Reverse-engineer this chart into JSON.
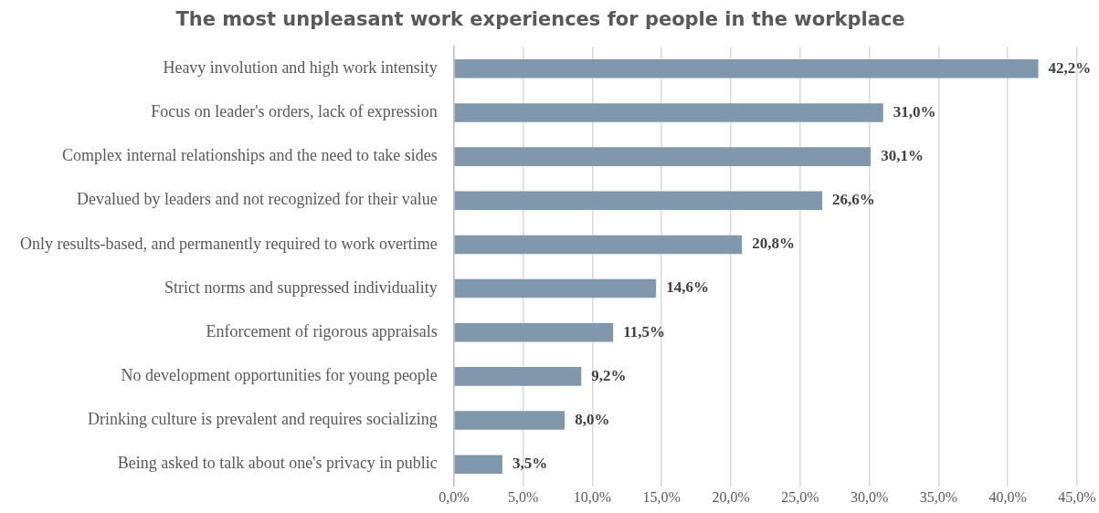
{
  "chart_data": {
    "type": "bar",
    "orientation": "horizontal",
    "title": "The most unpleasant work experiences for people in the workplace",
    "categories": [
      "Heavy involution and high work intensity",
      "Focus on leader's orders, lack of expression",
      "Complex internal relationships and the need to take sides",
      "Devalued by leaders and not recognized for their value",
      "Only results-based, and permanently required to work overtime",
      "Strict norms and suppressed individuality",
      "Enforcement of rigorous appraisals",
      "No development opportunities for young people",
      "Drinking culture is prevalent and requires socializing",
      "Being asked to talk about one's privacy in public"
    ],
    "values": [
      42.2,
      31.0,
      30.1,
      26.6,
      20.8,
      14.6,
      11.5,
      9.2,
      8.0,
      3.5
    ],
    "value_labels": [
      "42,2%",
      "31,0%",
      "30,1%",
      "26,6%",
      "20,8%",
      "14,6%",
      "11,5%",
      "9,2%",
      "8,0%",
      "3,5%"
    ],
    "color": "#7f98ae",
    "xlim": [
      0,
      45
    ],
    "xticks": [
      {
        "value": 0,
        "label": "0,0%"
      },
      {
        "value": 5,
        "label": "5,0%"
      },
      {
        "value": 10,
        "label": "10,0%"
      },
      {
        "value": 15,
        "label": "15,0%"
      },
      {
        "value": 20,
        "label": "20,0%"
      },
      {
        "value": 25,
        "label": "25,0%"
      },
      {
        "value": 30,
        "label": "30,0%"
      },
      {
        "value": 35,
        "label": "35,0%"
      },
      {
        "value": 40,
        "label": "40,0%"
      },
      {
        "value": 45,
        "label": "45,0%"
      }
    ],
    "grid": "x"
  }
}
